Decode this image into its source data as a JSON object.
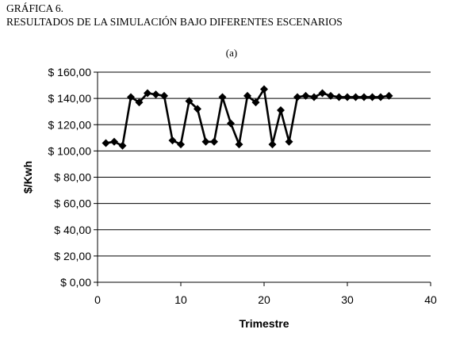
{
  "figure": {
    "title_line1": "GRÁFICA 6.",
    "title_line2": "RESULTADOS DE LA SIMULACIÓN BAJO DIFERENTES ESCENARIOS",
    "panel_label": "(a)"
  },
  "chart_data": {
    "type": "line",
    "xlabel": "Trimestre",
    "ylabel": "$/Kwh",
    "xlim": [
      0,
      40
    ],
    "ylim": [
      0,
      160
    ],
    "x_ticks": [
      0,
      10,
      20,
      30,
      40
    ],
    "x_tick_labels": [
      "0",
      "10",
      "20",
      "30",
      "40"
    ],
    "y_ticks": [
      0,
      20,
      40,
      60,
      80,
      100,
      120,
      140,
      160
    ],
    "y_tick_labels": [
      "$ 0,00",
      "$ 20,00",
      "$ 40,00",
      "$ 60,00",
      "$ 80,00",
      "$ 100,00",
      "$ 120,00",
      "$ 140,00",
      "$ 160,00"
    ],
    "grid": "horizontal",
    "legend": "none",
    "marker": "diamond",
    "series_color": "#000000",
    "series": [
      {
        "x": [
          1,
          2,
          3,
          4,
          5,
          6,
          7,
          8,
          9,
          10,
          11,
          12,
          13,
          14,
          15,
          16,
          17,
          18,
          19,
          20,
          21,
          22,
          23,
          24,
          25,
          26,
          27,
          28,
          29,
          30,
          31,
          32,
          33,
          34,
          35
        ],
        "values": [
          106,
          107,
          104,
          141,
          137,
          144,
          143,
          142,
          108,
          105,
          138,
          132,
          107,
          107,
          141,
          121,
          105,
          142,
          137,
          147,
          105,
          131,
          107,
          141,
          142,
          141,
          144,
          142,
          141,
          141,
          141,
          141,
          141,
          141,
          142
        ]
      }
    ]
  }
}
